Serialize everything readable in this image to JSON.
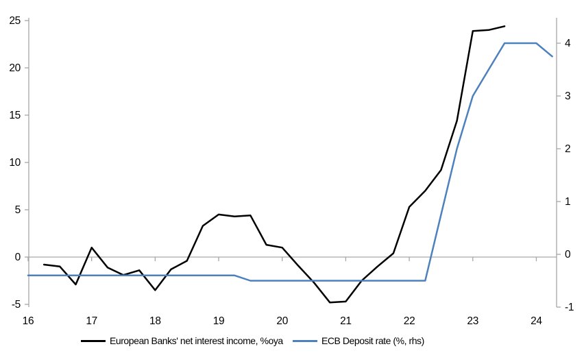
{
  "chart_data": {
    "type": "line",
    "title": "",
    "x_axis": {
      "tick_labels": [
        "16",
        "17",
        "18",
        "19",
        "20",
        "21",
        "22",
        "23",
        "24"
      ],
      "tick_years": [
        16,
        17,
        18,
        19,
        20,
        21,
        22,
        23,
        24
      ],
      "unit": "year (quarterly data)"
    },
    "left_axis": {
      "ticks": [
        25,
        20,
        15,
        10,
        5,
        0,
        -5
      ],
      "range": [
        -5,
        25
      ]
    },
    "right_axis": {
      "ticks": [
        4,
        3,
        2,
        1,
        0,
        -1
      ],
      "range": [
        -1,
        4.5
      ]
    },
    "grid": "zero-line-only",
    "colors": {
      "nii_line": "#000000",
      "ecb_line": "#4d81bd",
      "axis": "#a6a6a6",
      "text": "#000000"
    },
    "series": [
      {
        "name": "European Banks' net interest income, %oya",
        "axis": "left",
        "color_key": "nii_line",
        "x_start": 16.25,
        "x_step": 0.25,
        "values": [
          -0.8,
          -1.0,
          -2.9,
          1.0,
          -1.1,
          -1.9,
          -1.4,
          -3.5,
          -1.3,
          -0.4,
          3.3,
          4.5,
          4.3,
          4.4,
          1.3,
          1.0,
          -0.9,
          -2.7,
          -4.8,
          -4.7,
          -2.5,
          -1.0,
          0.4,
          5.3,
          7.0,
          9.2,
          14.4,
          23.9,
          24.0,
          24.4
        ]
      },
      {
        "name": "ECB Deposit rate (%, rhs)",
        "axis": "right",
        "color_key": "ecb_line",
        "x_start": 16.0,
        "x_step": 0.25,
        "values": [
          -0.4,
          -0.4,
          -0.4,
          -0.4,
          -0.4,
          -0.4,
          -0.4,
          -0.4,
          -0.4,
          -0.4,
          -0.4,
          -0.4,
          -0.4,
          -0.4,
          -0.5,
          -0.5,
          -0.5,
          -0.5,
          -0.5,
          -0.5,
          -0.5,
          -0.5,
          -0.5,
          -0.5,
          -0.5,
          -0.5,
          0.75,
          2.0,
          3.0,
          3.5,
          4.0,
          4.0,
          4.0,
          3.75
        ]
      }
    ],
    "legend": {
      "position": "bottom",
      "items": [
        "European Banks' net interest income, %oya",
        "ECB Deposit rate (%, rhs)"
      ]
    }
  }
}
